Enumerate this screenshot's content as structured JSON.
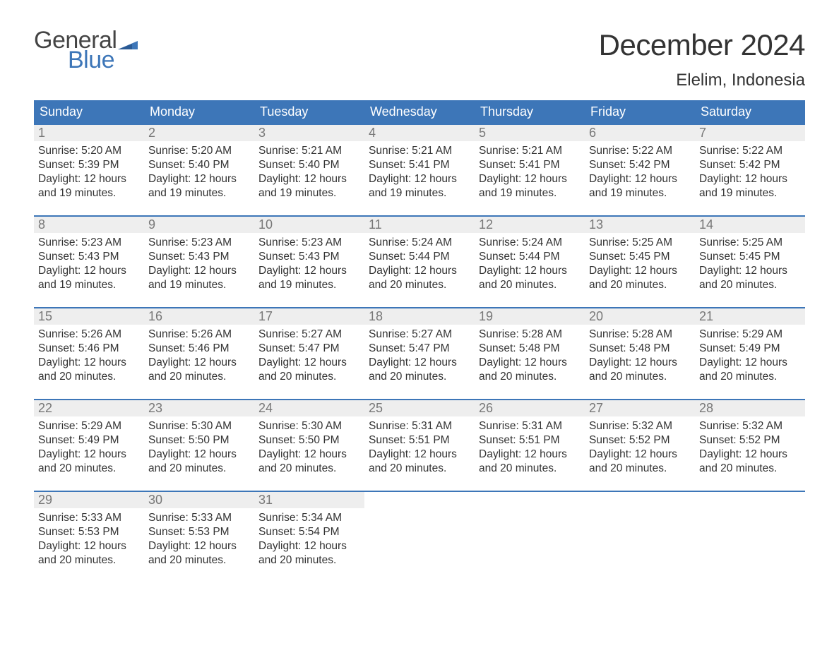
{
  "brand": {
    "general": "General",
    "blue": "Blue"
  },
  "title": "December 2024",
  "location": "Elelim, Indonesia",
  "colors": {
    "brand_blue": "#3d76b8",
    "header_bg": "#3d76b8",
    "daynum_bg": "#eeeeee",
    "daynum_fg": "#777777",
    "text": "#333333",
    "row_border": "#3d76b8",
    "background": "#ffffff"
  },
  "dow": [
    "Sunday",
    "Monday",
    "Tuesday",
    "Wednesday",
    "Thursday",
    "Friday",
    "Saturday"
  ],
  "weeks": [
    [
      {
        "n": "1",
        "sr": "Sunrise: 5:20 AM",
        "ss": "Sunset: 5:39 PM",
        "d1": "Daylight: 12 hours",
        "d2": "and 19 minutes."
      },
      {
        "n": "2",
        "sr": "Sunrise: 5:20 AM",
        "ss": "Sunset: 5:40 PM",
        "d1": "Daylight: 12 hours",
        "d2": "and 19 minutes."
      },
      {
        "n": "3",
        "sr": "Sunrise: 5:21 AM",
        "ss": "Sunset: 5:40 PM",
        "d1": "Daylight: 12 hours",
        "d2": "and 19 minutes."
      },
      {
        "n": "4",
        "sr": "Sunrise: 5:21 AM",
        "ss": "Sunset: 5:41 PM",
        "d1": "Daylight: 12 hours",
        "d2": "and 19 minutes."
      },
      {
        "n": "5",
        "sr": "Sunrise: 5:21 AM",
        "ss": "Sunset: 5:41 PM",
        "d1": "Daylight: 12 hours",
        "d2": "and 19 minutes."
      },
      {
        "n": "6",
        "sr": "Sunrise: 5:22 AM",
        "ss": "Sunset: 5:42 PM",
        "d1": "Daylight: 12 hours",
        "d2": "and 19 minutes."
      },
      {
        "n": "7",
        "sr": "Sunrise: 5:22 AM",
        "ss": "Sunset: 5:42 PM",
        "d1": "Daylight: 12 hours",
        "d2": "and 19 minutes."
      }
    ],
    [
      {
        "n": "8",
        "sr": "Sunrise: 5:23 AM",
        "ss": "Sunset: 5:43 PM",
        "d1": "Daylight: 12 hours",
        "d2": "and 19 minutes."
      },
      {
        "n": "9",
        "sr": "Sunrise: 5:23 AM",
        "ss": "Sunset: 5:43 PM",
        "d1": "Daylight: 12 hours",
        "d2": "and 19 minutes."
      },
      {
        "n": "10",
        "sr": "Sunrise: 5:23 AM",
        "ss": "Sunset: 5:43 PM",
        "d1": "Daylight: 12 hours",
        "d2": "and 19 minutes."
      },
      {
        "n": "11",
        "sr": "Sunrise: 5:24 AM",
        "ss": "Sunset: 5:44 PM",
        "d1": "Daylight: 12 hours",
        "d2": "and 20 minutes."
      },
      {
        "n": "12",
        "sr": "Sunrise: 5:24 AM",
        "ss": "Sunset: 5:44 PM",
        "d1": "Daylight: 12 hours",
        "d2": "and 20 minutes."
      },
      {
        "n": "13",
        "sr": "Sunrise: 5:25 AM",
        "ss": "Sunset: 5:45 PM",
        "d1": "Daylight: 12 hours",
        "d2": "and 20 minutes."
      },
      {
        "n": "14",
        "sr": "Sunrise: 5:25 AM",
        "ss": "Sunset: 5:45 PM",
        "d1": "Daylight: 12 hours",
        "d2": "and 20 minutes."
      }
    ],
    [
      {
        "n": "15",
        "sr": "Sunrise: 5:26 AM",
        "ss": "Sunset: 5:46 PM",
        "d1": "Daylight: 12 hours",
        "d2": "and 20 minutes."
      },
      {
        "n": "16",
        "sr": "Sunrise: 5:26 AM",
        "ss": "Sunset: 5:46 PM",
        "d1": "Daylight: 12 hours",
        "d2": "and 20 minutes."
      },
      {
        "n": "17",
        "sr": "Sunrise: 5:27 AM",
        "ss": "Sunset: 5:47 PM",
        "d1": "Daylight: 12 hours",
        "d2": "and 20 minutes."
      },
      {
        "n": "18",
        "sr": "Sunrise: 5:27 AM",
        "ss": "Sunset: 5:47 PM",
        "d1": "Daylight: 12 hours",
        "d2": "and 20 minutes."
      },
      {
        "n": "19",
        "sr": "Sunrise: 5:28 AM",
        "ss": "Sunset: 5:48 PM",
        "d1": "Daylight: 12 hours",
        "d2": "and 20 minutes."
      },
      {
        "n": "20",
        "sr": "Sunrise: 5:28 AM",
        "ss": "Sunset: 5:48 PM",
        "d1": "Daylight: 12 hours",
        "d2": "and 20 minutes."
      },
      {
        "n": "21",
        "sr": "Sunrise: 5:29 AM",
        "ss": "Sunset: 5:49 PM",
        "d1": "Daylight: 12 hours",
        "d2": "and 20 minutes."
      }
    ],
    [
      {
        "n": "22",
        "sr": "Sunrise: 5:29 AM",
        "ss": "Sunset: 5:49 PM",
        "d1": "Daylight: 12 hours",
        "d2": "and 20 minutes."
      },
      {
        "n": "23",
        "sr": "Sunrise: 5:30 AM",
        "ss": "Sunset: 5:50 PM",
        "d1": "Daylight: 12 hours",
        "d2": "and 20 minutes."
      },
      {
        "n": "24",
        "sr": "Sunrise: 5:30 AM",
        "ss": "Sunset: 5:50 PM",
        "d1": "Daylight: 12 hours",
        "d2": "and 20 minutes."
      },
      {
        "n": "25",
        "sr": "Sunrise: 5:31 AM",
        "ss": "Sunset: 5:51 PM",
        "d1": "Daylight: 12 hours",
        "d2": "and 20 minutes."
      },
      {
        "n": "26",
        "sr": "Sunrise: 5:31 AM",
        "ss": "Sunset: 5:51 PM",
        "d1": "Daylight: 12 hours",
        "d2": "and 20 minutes."
      },
      {
        "n": "27",
        "sr": "Sunrise: 5:32 AM",
        "ss": "Sunset: 5:52 PM",
        "d1": "Daylight: 12 hours",
        "d2": "and 20 minutes."
      },
      {
        "n": "28",
        "sr": "Sunrise: 5:32 AM",
        "ss": "Sunset: 5:52 PM",
        "d1": "Daylight: 12 hours",
        "d2": "and 20 minutes."
      }
    ],
    [
      {
        "n": "29",
        "sr": "Sunrise: 5:33 AM",
        "ss": "Sunset: 5:53 PM",
        "d1": "Daylight: 12 hours",
        "d2": "and 20 minutes."
      },
      {
        "n": "30",
        "sr": "Sunrise: 5:33 AM",
        "ss": "Sunset: 5:53 PM",
        "d1": "Daylight: 12 hours",
        "d2": "and 20 minutes."
      },
      {
        "n": "31",
        "sr": "Sunrise: 5:34 AM",
        "ss": "Sunset: 5:54 PM",
        "d1": "Daylight: 12 hours",
        "d2": "and 20 minutes."
      },
      {
        "n": "",
        "sr": "",
        "ss": "",
        "d1": "",
        "d2": ""
      },
      {
        "n": "",
        "sr": "",
        "ss": "",
        "d1": "",
        "d2": ""
      },
      {
        "n": "",
        "sr": "",
        "ss": "",
        "d1": "",
        "d2": ""
      },
      {
        "n": "",
        "sr": "",
        "ss": "",
        "d1": "",
        "d2": ""
      }
    ]
  ]
}
